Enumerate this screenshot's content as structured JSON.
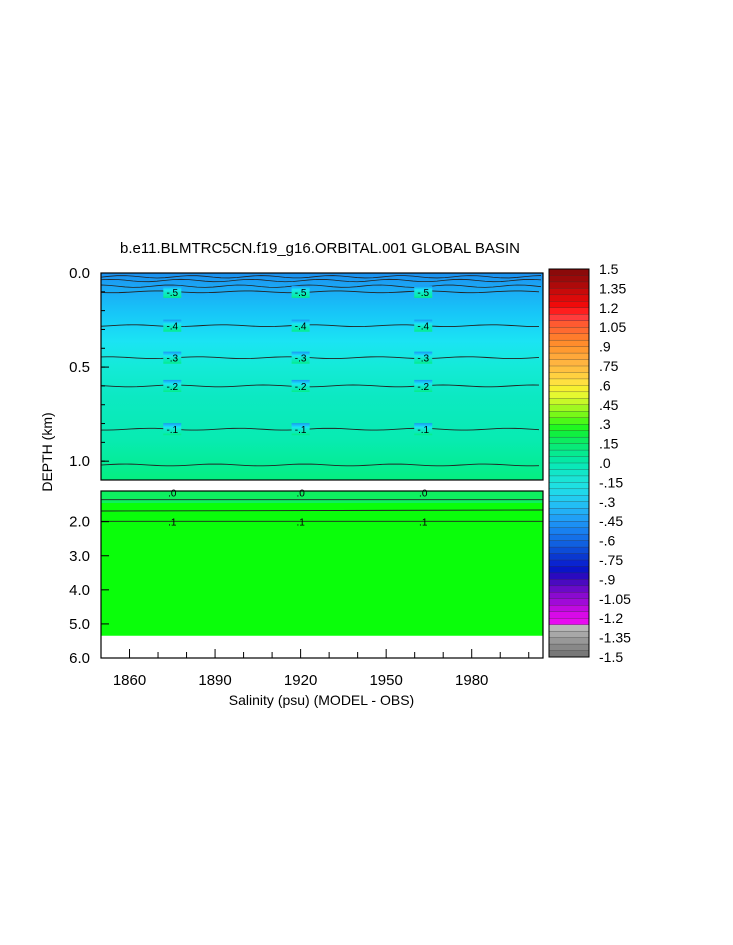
{
  "chart_data": {
    "type": "heatmap",
    "title": "b.e11.BLMTRC5CN.f19_g16.ORBITAL.001 GLOBAL BASIN",
    "xlabel": "Salinity (psu) (MODEL - OBS)",
    "ylabel": "DEPTH (km)",
    "x_range": [
      1850,
      2005
    ],
    "x_ticks": [
      1860,
      1890,
      1920,
      1950,
      1980
    ],
    "upper_panel": {
      "depth_range_km": [
        0.0,
        1.1
      ],
      "y_ticks": [
        "0.0",
        "0.5",
        "1.0"
      ],
      "contours": [
        {
          "level": -0.5,
          "label": "-.5",
          "depth_km": 0.1
        },
        {
          "level": -0.4,
          "label": "-.4",
          "depth_km": 0.28
        },
        {
          "level": -0.3,
          "label": "-.3",
          "depth_km": 0.45
        },
        {
          "level": -0.2,
          "label": "-.2",
          "depth_km": 0.6
        },
        {
          "level": -0.1,
          "label": "-.1",
          "depth_km": 0.83
        },
        {
          "level": 0.0,
          "label": "",
          "depth_km": 1.02
        }
      ]
    },
    "lower_panel": {
      "depth_range_km": [
        1.1,
        6.0
      ],
      "y_ticks": [
        "2.0",
        "3.0",
        "4.0",
        "5.0",
        "6.0"
      ],
      "contours": [
        {
          "level": 0.0,
          "label": ".0",
          "depth_km": 1.15
        },
        {
          "level": 0.1,
          "label": ".1",
          "depth_km": 1.99
        }
      ],
      "no_data_below_km": 5.35
    },
    "colorbar": {
      "labels": [
        "1.5",
        "1.35",
        "1.2",
        "1.05",
        ".9",
        ".75",
        ".6",
        ".45",
        ".3",
        ".15",
        ".0",
        "-.15",
        "-.3",
        "-.45",
        "-.6",
        "-.75",
        "-.9",
        "-1.05",
        "-1.2",
        "-1.35",
        "-1.5"
      ],
      "range": [
        -1.5,
        1.5
      ]
    }
  }
}
